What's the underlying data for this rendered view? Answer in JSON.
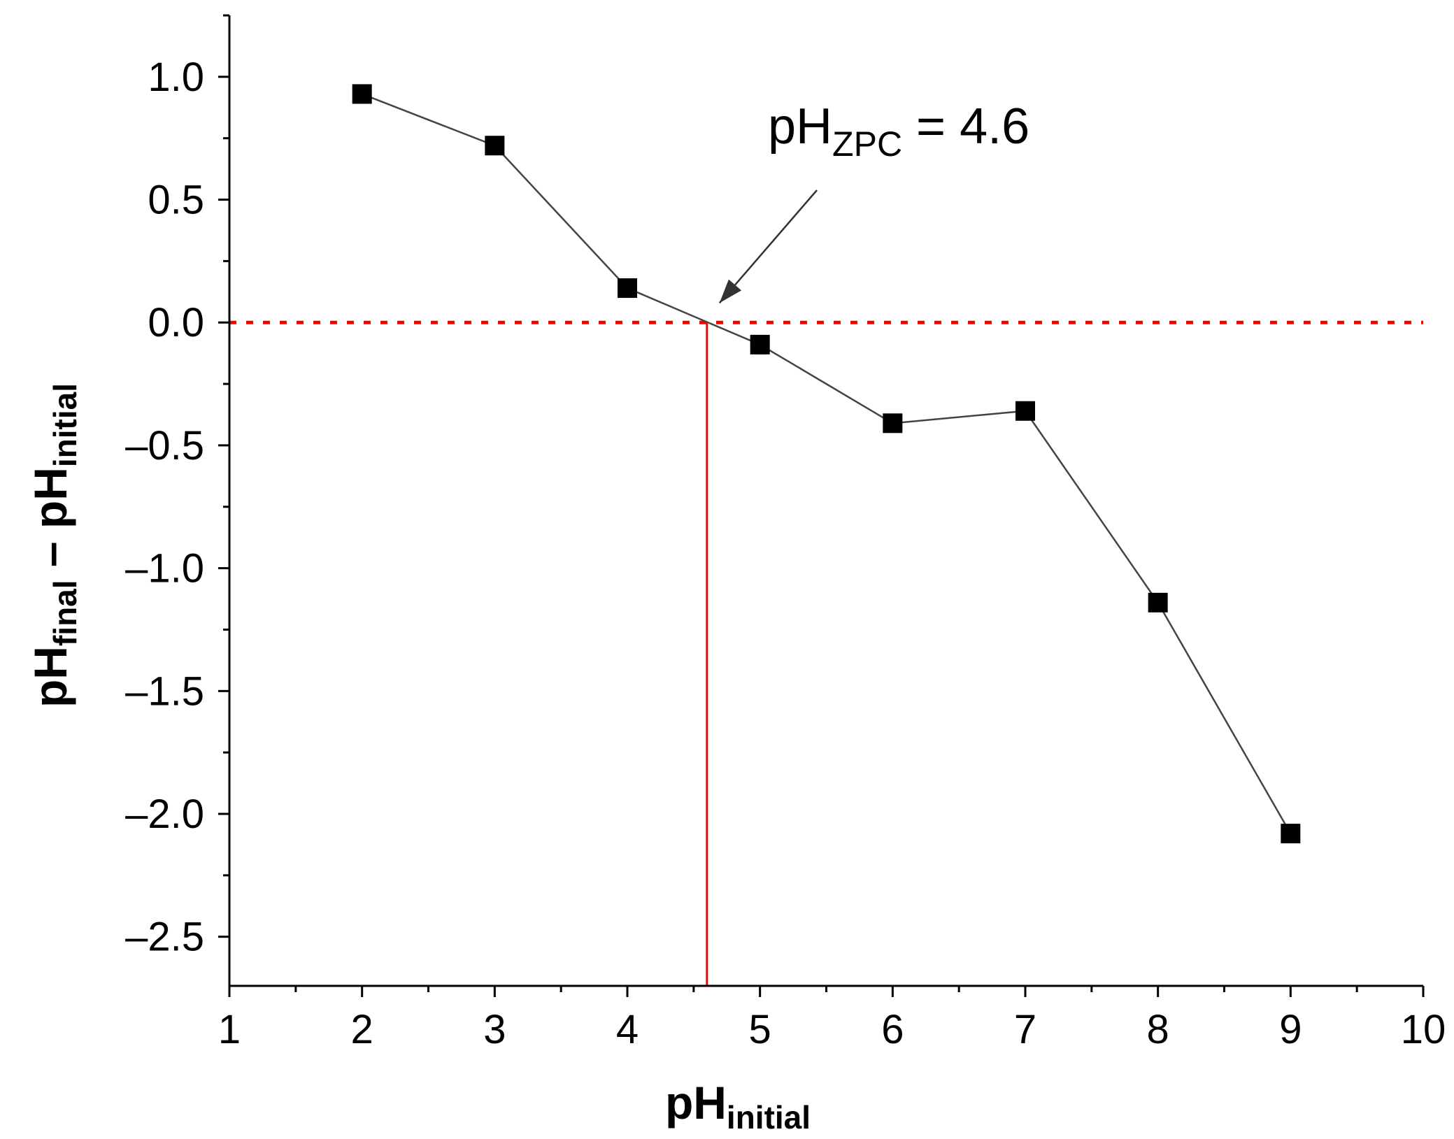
{
  "chart_data": {
    "type": "line",
    "xlabel": {
      "main": "pH",
      "sub": "initial"
    },
    "ylabel": {
      "main1": "pH",
      "sub1": "final",
      "dash": " – ",
      "main2": "pH",
      "sub2": "initial"
    },
    "xlim": [
      1,
      10
    ],
    "ylim": [
      -2.7,
      1.25
    ],
    "x_ticks": [
      1,
      2,
      3,
      4,
      5,
      6,
      7,
      8,
      9,
      10
    ],
    "x_tick_labels": [
      "1",
      "2",
      "3",
      "4",
      "5",
      "6",
      "7",
      "8",
      "9",
      "10"
    ],
    "y_ticks": [
      1.0,
      0.5,
      0.0,
      -0.5,
      -1.0,
      -1.5,
      -2.0,
      -2.5
    ],
    "y_tick_labels": [
      "1.0",
      "0.5",
      "0.0",
      "–0.5",
      "–1.0",
      "–1.5",
      "–2.0",
      "–2.5"
    ],
    "grid": false,
    "series": [
      {
        "x": [
          2,
          3,
          4,
          5,
          6,
          7,
          8,
          9
        ],
        "y": [
          0.93,
          0.72,
          0.14,
          -0.09,
          -0.41,
          -0.36,
          -1.14,
          -2.08
        ],
        "color": "#000000",
        "marker": "square"
      }
    ],
    "reference_lines": {
      "zero_line": {
        "y": 0,
        "color": "#ff0000",
        "style": "dotted"
      },
      "zpc_line": {
        "x": 4.6,
        "color": "#ff0000",
        "style": "solid"
      }
    },
    "annotation": {
      "main": "pH",
      "sub": "ZPC",
      "value": " = 4.6",
      "points_to": {
        "x": 4.6,
        "y": 0
      }
    }
  }
}
